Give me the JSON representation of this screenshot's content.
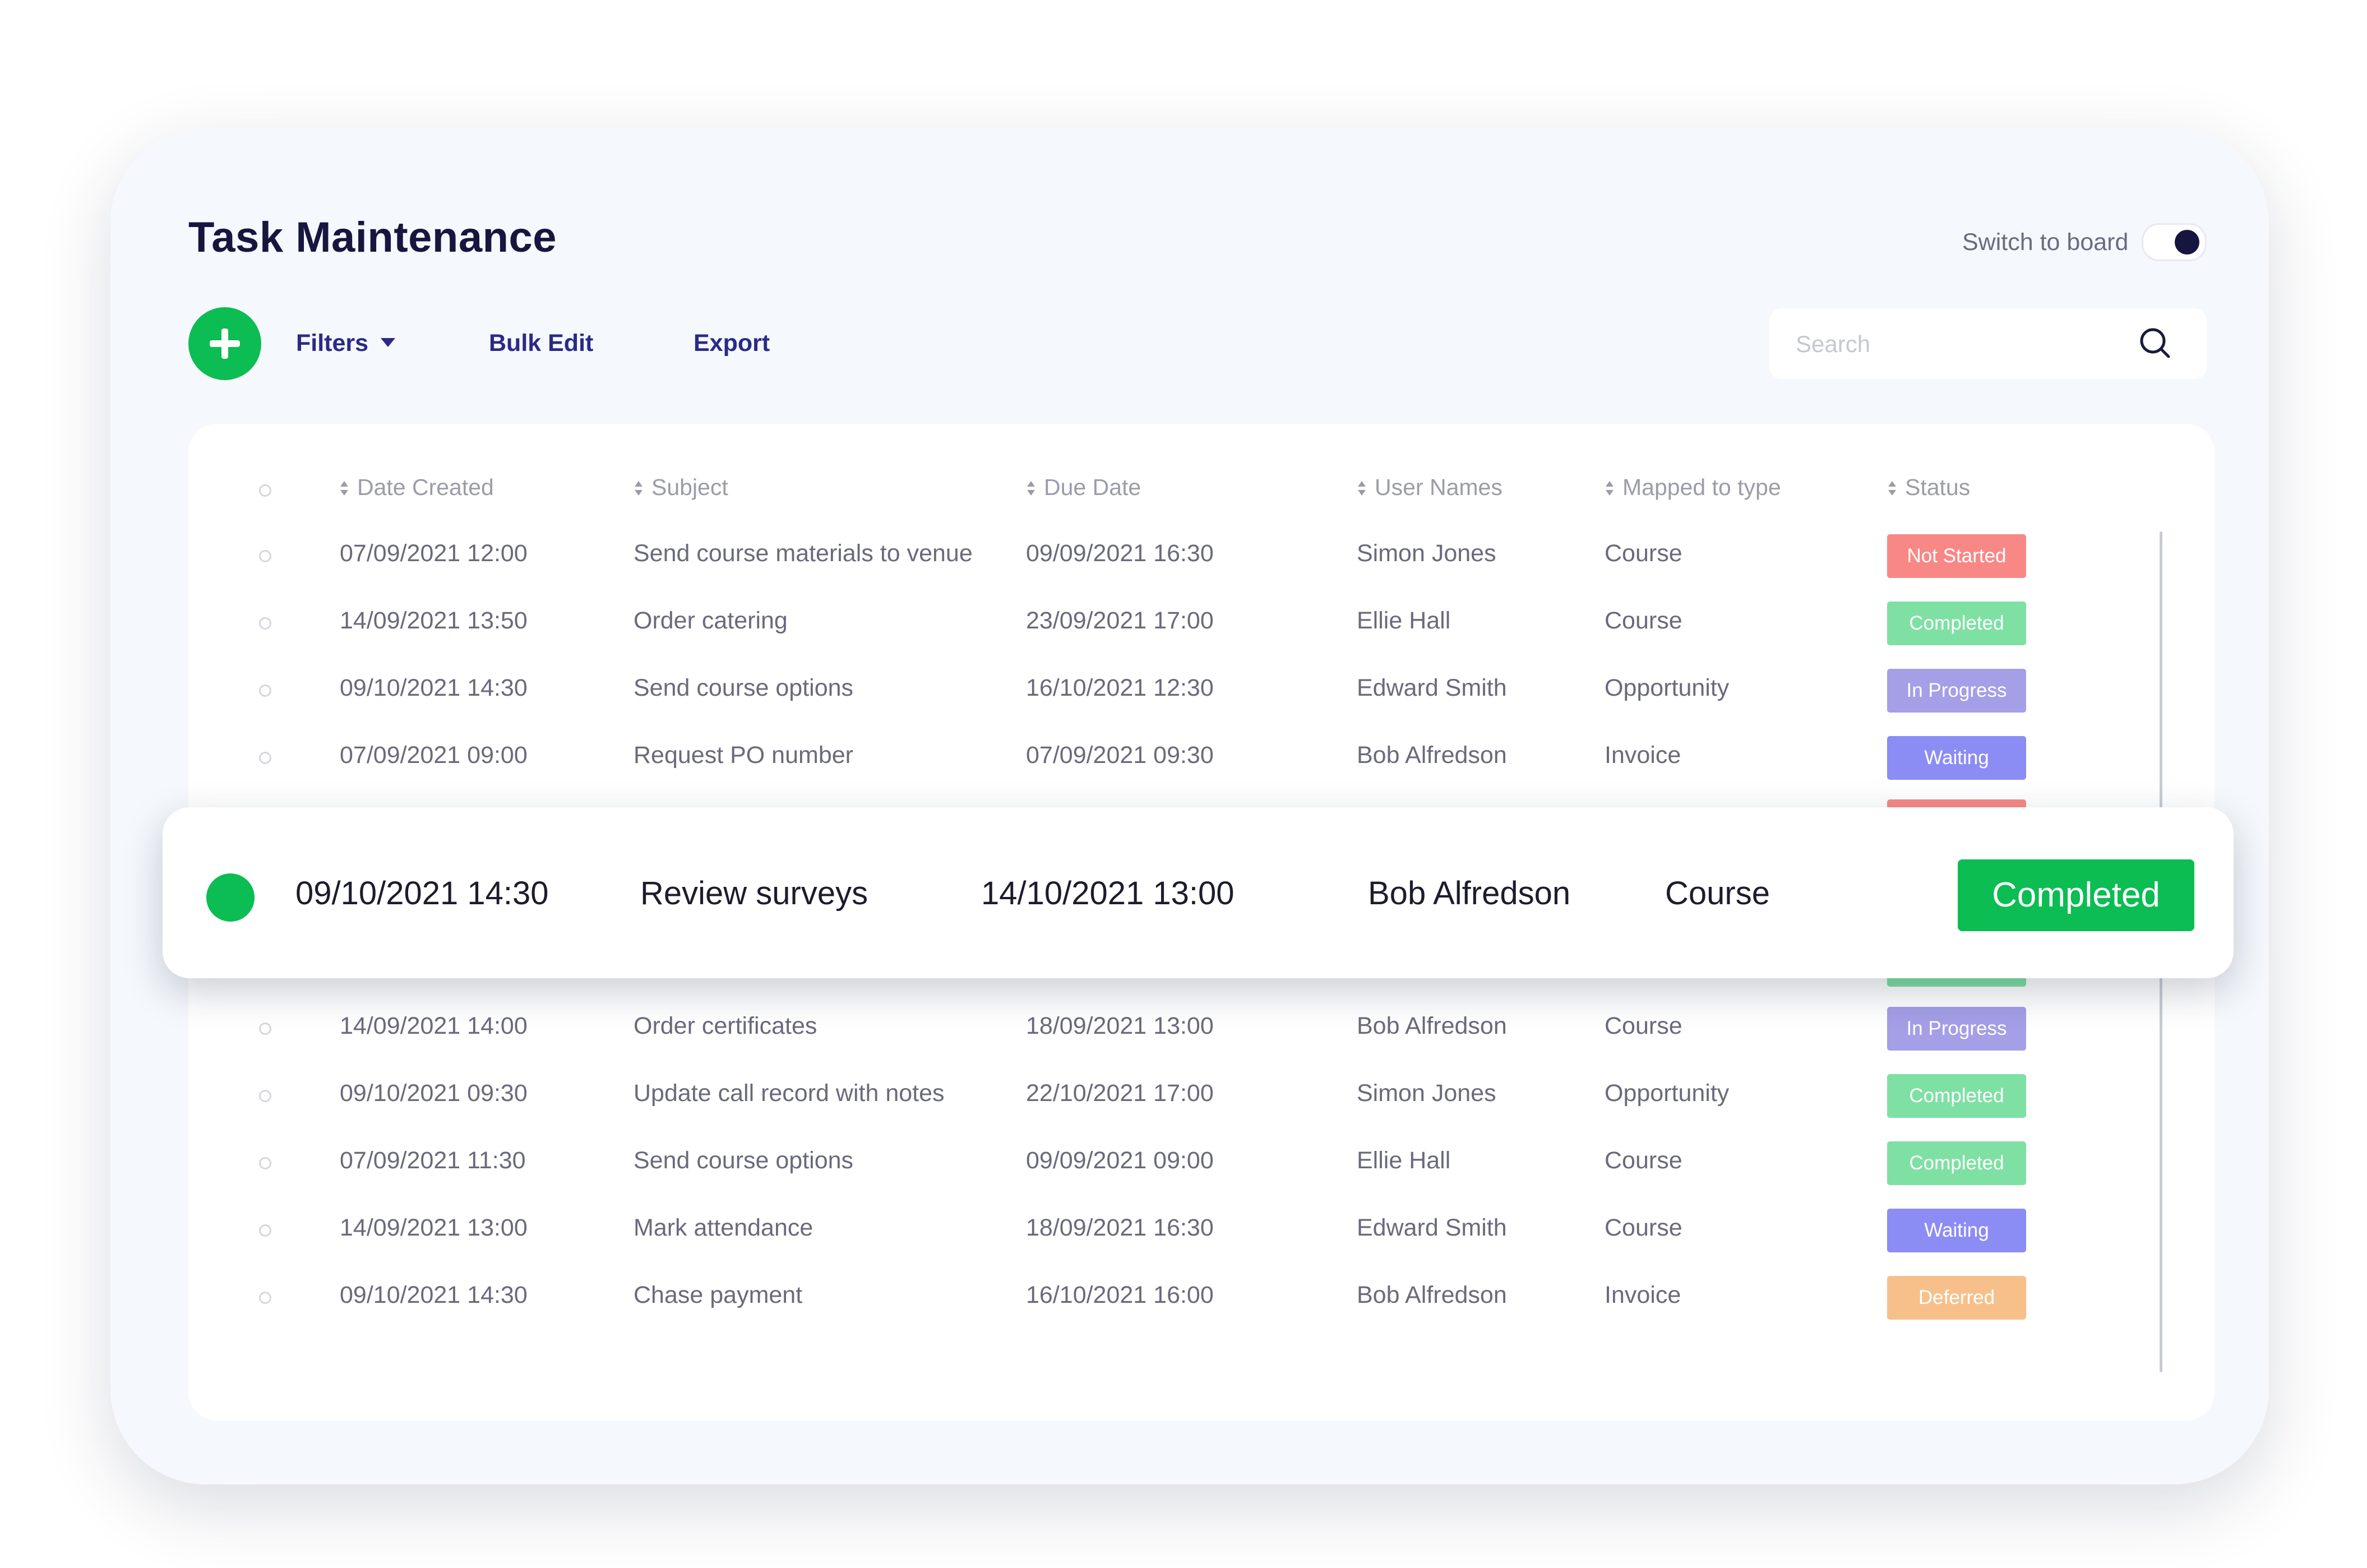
{
  "header": {
    "title": "Task Maintenance",
    "switch_label": "Switch to board"
  },
  "toolbar": {
    "filters_label": "Filters",
    "bulk_edit_label": "Bulk Edit",
    "export_label": "Export",
    "search_placeholder": "Search",
    "add_icon": "plus-icon",
    "search_icon": "search-icon"
  },
  "table": {
    "columns": [
      "Date Created",
      "Subject",
      "Due Date",
      "User Names",
      "Mapped to type",
      "Status"
    ],
    "rows_top": [
      {
        "created": "07/09/2021  12:00",
        "subject": "Send course materials to venue",
        "due": "09/09/2021  16:30",
        "user": "Simon Jones",
        "type": "Course",
        "status": "Not Started"
      },
      {
        "created": "14/09/2021  13:50",
        "subject": "Order catering",
        "due": "23/09/2021  17:00",
        "user": "Ellie Hall",
        "type": "Course",
        "status": "Completed"
      },
      {
        "created": "09/10/2021  14:30",
        "subject": "Send course options",
        "due": "16/10/2021  12:30",
        "user": "Edward Smith",
        "type": "Opportunity",
        "status": "In Progress"
      },
      {
        "created": "07/09/2021  09:00",
        "subject": "Request PO number",
        "due": "07/09/2021  09:30",
        "user": "Bob Alfredson",
        "type": "Invoice",
        "status": "Waiting"
      }
    ],
    "highlighted": {
      "created": "09/10/2021  14:30",
      "subject": "Review surveys",
      "due": "14/10/2021  13:00",
      "user": "Bob Alfredson",
      "type": "Course",
      "status": "Completed"
    },
    "rows_bottom": [
      {
        "created": "14/09/2021  14:00",
        "subject": "Order certificates",
        "due": "18/09/2021  13:00",
        "user": "Bob Alfredson",
        "type": "Course",
        "status": "In Progress"
      },
      {
        "created": "09/10/2021  09:30",
        "subject": "Update call record with notes",
        "due": "22/10/2021  17:00",
        "user": "Simon Jones",
        "type": "Opportunity",
        "status": "Completed"
      },
      {
        "created": "07/09/2021  11:30",
        "subject": "Send course options",
        "due": "09/09/2021  09:00",
        "user": "Ellie Hall",
        "type": "Course",
        "status": "Completed"
      },
      {
        "created": "14/09/2021  13:00",
        "subject": "Mark attendance",
        "due": "18/09/2021  16:30",
        "user": "Edward Smith",
        "type": "Course",
        "status": "Waiting"
      },
      {
        "created": "09/10/2021  14:30",
        "subject": "Chase payment",
        "due": "16/10/2021  16:00",
        "user": "Bob Alfredson",
        "type": "Invoice",
        "status": "Deferred"
      }
    ]
  },
  "status_colors": {
    "Not Started": "#f88886",
    "Completed": "#7fe0a4",
    "In Progress": "#a49fe6",
    "Waiting": "#8c8cf5",
    "Deferred": "#f7c08b"
  },
  "accent_color": "#0bbd52"
}
